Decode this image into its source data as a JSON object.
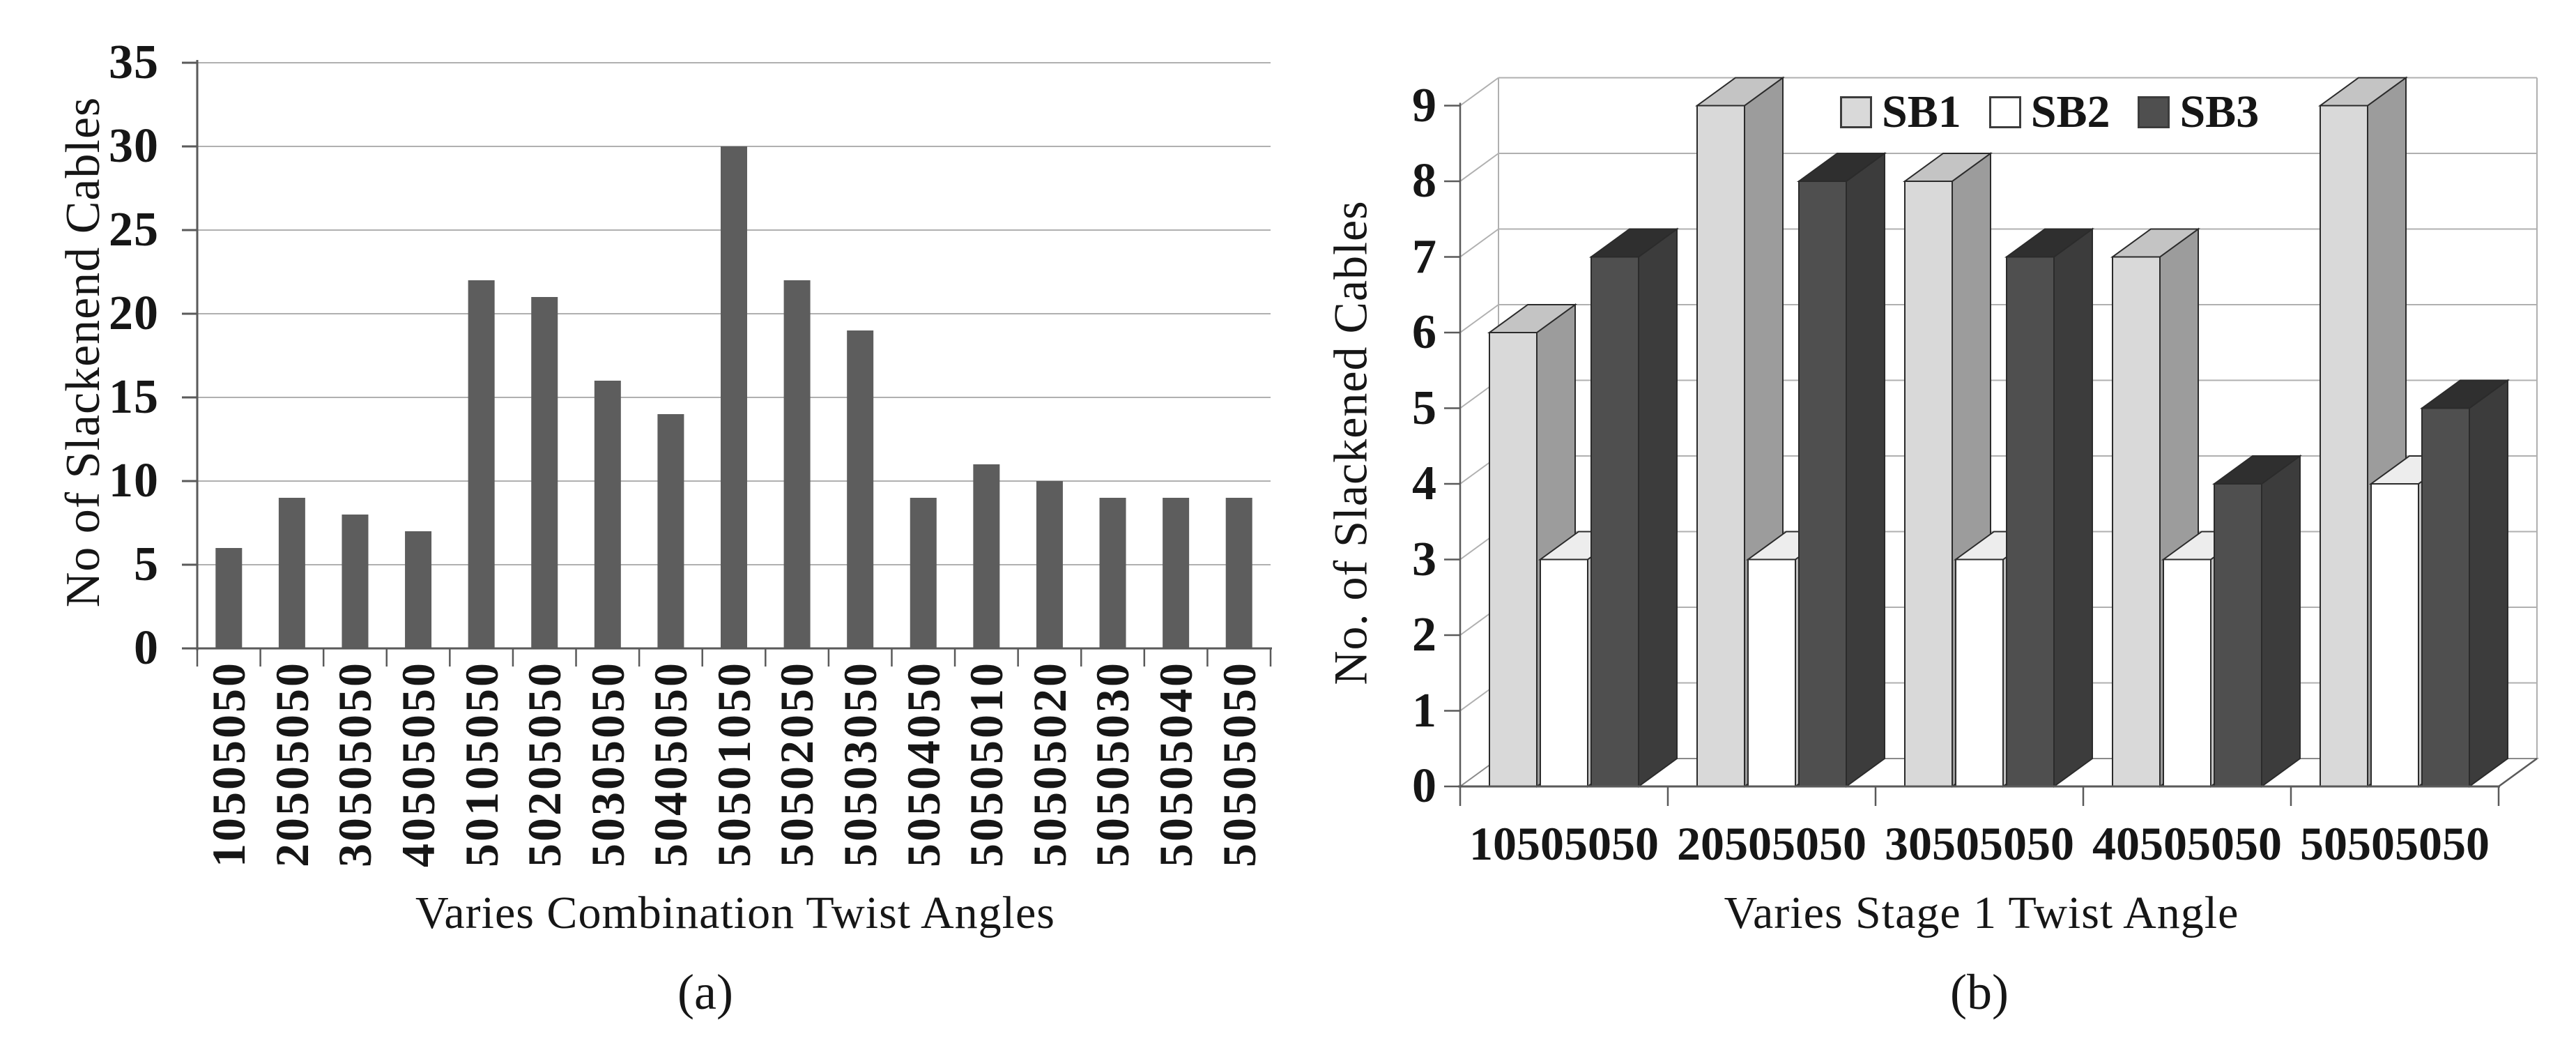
{
  "figure": {
    "panel_a_caption": "(a)",
    "panel_b_caption": "(b)"
  },
  "chart_data": [
    {
      "type": "bar",
      "panel": "a",
      "title": "",
      "xlabel": "Varies Combination Twist Angles",
      "ylabel": "No of Slackenend Cables",
      "categories": [
        "10505050",
        "20505050",
        "30505050",
        "40505050",
        "50105050",
        "50205050",
        "50305050",
        "50405050",
        "50501050",
        "50502050",
        "50503050",
        "50504050",
        "50505010",
        "50505020",
        "50505030",
        "50505040",
        "50505050"
      ],
      "values": [
        6,
        9,
        8,
        7,
        22,
        21,
        16,
        14,
        30,
        22,
        19,
        9,
        11,
        10,
        9,
        9,
        9
      ],
      "ylim": [
        0,
        35
      ],
      "yticks": [
        0,
        5,
        10,
        15,
        20,
        25,
        30,
        35
      ],
      "grid": true,
      "legend": false,
      "bar_color": "#5d5d5d",
      "grid_color": "#b0b0b0",
      "axis_color": "#5a5a5a"
    },
    {
      "type": "bar",
      "style": "3d-clustered-column",
      "panel": "b",
      "title": "",
      "xlabel": "Varies Stage 1 Twist Angle",
      "ylabel": "No. of Slackened Cables",
      "categories": [
        "10505050",
        "20505050",
        "30505050",
        "40505050",
        "50505050"
      ],
      "series": [
        {
          "name": "SB1",
          "values": [
            6,
            9,
            8,
            7,
            9
          ],
          "front_color": "#d9d9d9",
          "top_color": "#c4c4c4",
          "side_color": "#9c9c9c"
        },
        {
          "name": "SB2",
          "values": [
            3,
            3,
            3,
            3,
            4
          ],
          "front_color": "#ffffff",
          "top_color": "#ededed",
          "side_color": "#c2c2c2"
        },
        {
          "name": "SB3",
          "values": [
            7,
            8,
            7,
            4,
            5
          ],
          "front_color": "#4f4f4f",
          "top_color": "#2f2f2f",
          "side_color": "#3c3c3c"
        }
      ],
      "ylim": [
        0,
        9
      ],
      "yticks": [
        0,
        1,
        2,
        3,
        4,
        5,
        6,
        7,
        8,
        9
      ],
      "grid": true,
      "legend_position": "top-right",
      "grid_color": "#b0b0b0",
      "axis_color": "#5a5a5a",
      "outline_color": "#2b2b2b"
    }
  ]
}
